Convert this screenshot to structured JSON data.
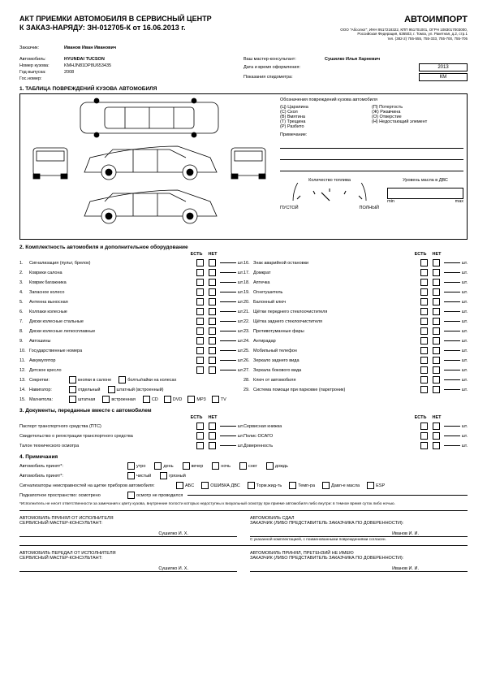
{
  "header": {
    "title_line1": "АКТ ПРИЕМКИ АВТОМОБИЛЯ В СЕРВИСНЫЙ ЦЕНТР",
    "title_line2": "К ЗАКАЗ-НАРЯДУ:   ЗН-012705-К от 16.06.2013 г.",
    "company": "АВТОИМПОРТ",
    "company_info1": "ООО \"Абсолют\", ИНН 9517218322, КПП 951701001, ОГРН 1083017003000,",
    "company_info2": "Российская Федерация, 636503, г. Томск, ул. Ракетная, д.2, стр.1",
    "company_info3": "тел. (382-2) 755-555, 755-333, 755-700, 755-705"
  },
  "customer": {
    "label": "Заказчик:",
    "name": "Иванов Иван Иванович"
  },
  "car": {
    "make_label": "Автомобиль:",
    "make": "HYUNDAI TUCSON",
    "vin_label": "Номер кузова:",
    "vin": "KMHJN81DP8U653435",
    "year_label": "Год выпуска:",
    "year": "2008",
    "plate_label": "Гос.номер:"
  },
  "consultant": {
    "label": "Ваш мастер-консультант:",
    "name": "Сушилко Илья Харневич",
    "date_label": "Дата и время оформления:",
    "date_box": "2013",
    "odo_label": "Показания спидометра:",
    "odo_unit": "КМ"
  },
  "section1_title": "1. ТАБЛИЦА ПОВРЕЖДЕНИЙ КУЗОВА АВТОМОБИЛЯ",
  "damage_legend": {
    "title": "Обозначения повреждений кузова автомобиля",
    "col1": [
      "(Ц)   Царапина",
      "(С)   Скол",
      "(В)   Вмятина",
      "(Т)   Трещина",
      "(Р)   Разбито"
    ],
    "col2": [
      "(П)   Потертость",
      "(Ж)   Ржавчина",
      "(О)   Отверстие",
      "(Н)   Недостающий элемент"
    ],
    "note_label": "Примечание:",
    "fuel_label": "Количество топлива",
    "empty": "ПУСТОЙ",
    "full": "ПОЛНЫЙ",
    "oil_label": "Уровень масла в ДВС",
    "min": "min",
    "max": "max"
  },
  "section2_title": "2.   Комплектность автомобиля и дополнительное оборудование",
  "eq_headers": {
    "yes": "ЕСТЬ",
    "no": "НЕТ",
    "qty": ""
  },
  "equipment_left": [
    {
      "n": "1.",
      "name": "Сигнализация (пульт, брелок)"
    },
    {
      "n": "2.",
      "name": "Коврики салона"
    },
    {
      "n": "3.",
      "name": "Коврик багажника"
    },
    {
      "n": "4.",
      "name": "Запасное колесо"
    },
    {
      "n": "5.",
      "name": "Антенна выносная"
    },
    {
      "n": "6.",
      "name": "Колпаки колесные"
    },
    {
      "n": "7.",
      "name": "Диски колесные стальные"
    },
    {
      "n": "8.",
      "name": "Диски колесные легкосплавные"
    },
    {
      "n": "9.",
      "name": "Автошины"
    },
    {
      "n": "10.",
      "name": "Государственные номера"
    },
    {
      "n": "11.",
      "name": "Аккумулятор"
    },
    {
      "n": "12.",
      "name": "Детское кресло"
    }
  ],
  "equipment_left_extra": [
    {
      "n": "13.",
      "name": "Секретки:",
      "opts": [
        "кнопки в салоне",
        "болты/гайки на колесах"
      ]
    },
    {
      "n": "14.",
      "name": "Навигатор:",
      "opts": [
        "отдельный",
        "штатный (встроенный)"
      ]
    },
    {
      "n": "15.",
      "name": "Магнитола:",
      "opts": [
        "штатная",
        "встроенная"
      ],
      "media": [
        "CD",
        "DVD",
        "MP3",
        "TV"
      ]
    }
  ],
  "equipment_right": [
    {
      "n": "16.",
      "name": "Знак аварийной остановки"
    },
    {
      "n": "17.",
      "name": "Домкрат"
    },
    {
      "n": "18.",
      "name": "Аптечка"
    },
    {
      "n": "19.",
      "name": "Огнетушитель"
    },
    {
      "n": "20.",
      "name": "Балонный ключ"
    },
    {
      "n": "21.",
      "name": "Щётки переднего стеклоочистителя"
    },
    {
      "n": "22.",
      "name": "Щётка заднего стеклоочистителя"
    },
    {
      "n": "23.",
      "name": "Противотуманные фары"
    },
    {
      "n": "24.",
      "name": "Антирадар"
    },
    {
      "n": "25.",
      "name": "Мобильный телефон"
    },
    {
      "n": "26.",
      "name": "Зеркало заднего вида"
    },
    {
      "n": "27.",
      "name": "Зеркала бокового вида"
    },
    {
      "n": "28.",
      "name": "Ключ от автомобиля"
    },
    {
      "n": "29.",
      "name": "Система помощи при парковке (парктроник)"
    }
  ],
  "section3_title": "3.   Документы, переданные вместе с автомобилем",
  "docs_left": [
    "Паспорт транспортного средства (ПТС)",
    "Свидетельство о регистрации транспортного средства",
    "Талон технического осмотра"
  ],
  "docs_right": [
    "Сервисная книжка",
    "Полис ОСАГО",
    "Доверенность"
  ],
  "section4_title": "4.   Примечания",
  "notes": {
    "row1_label": "Автомобиль принят*:",
    "row1_opts": [
      "утро",
      "день",
      "вечер",
      "ночь",
      "снег",
      "дождь"
    ],
    "row2_label": "Автомобиль принят*:",
    "row2_opts": [
      "чистый",
      "грязный"
    ],
    "row3_label": "Сигнализаторы неисправностей на щитке приборов автомобиля:",
    "row3_opts": [
      "АБС",
      "ОШИБКА ДВС",
      "Торм.жид-ть",
      "Темп-ра",
      "Давл-е масла",
      "ESP"
    ],
    "row4_label": "Подкапотное пространство:   осмотрено",
    "row4_opt": "осмотр не проводился",
    "disclaimer": "*Исполнитель не несет ответственности за замечания к цвету кузова, внутренние полости которых недоступны к визуальный осмотру при приеме автомобиля либо внутри: в темное время суток либо ночью."
  },
  "signatures": {
    "s1_l1": "АВТОМОБИЛЬ ПРИНЯЛ ОТ ИСПОЛНИТЕЛЯ",
    "s1_l2": "СЕРВИСНЫЙ МАСТЕР-КОНСУЛЬТАНТ:",
    "s1_name": "Сушилко И. Х.",
    "s2_l1": "АВТОМОБИЛЬ СДАЛ",
    "s2_l2": "ЗАКАЗЧИК (ЛИБО ПРЕДСТАВИТЕЛЬ ЗАКАЗЧИКА ПО ДОВЕРЕННОСТИ):",
    "s2_name": "Иванов И. И.",
    "s2_note": "С указанной комплектацией, с поименованными повреждениями согласен.",
    "s3_l1": "АВТОМОБИЛЬ ПЕРЕДАЛ ОТ ИСПОЛНИТЕЛЯ",
    "s3_l2": "СЕРВИСНЫЙ МАСТЕР-КОНСУЛЬТАНТ:",
    "s3_name": "Сушилко И. Х.",
    "s4_l1": "АВТОМОБИЛЬ ПРИНЯЛ, ПРЕТЕНЗИЙ НЕ ИМЕЮ",
    "s4_l2": "ЗАКАЗЧИК (ЛИБО ПРЕДСТАВИТЕЛЬ ЗАКАЗЧИКА ПО ДОВЕРЕННОСТИ):",
    "s4_name": "Иванов И. И."
  },
  "unit": "шт."
}
